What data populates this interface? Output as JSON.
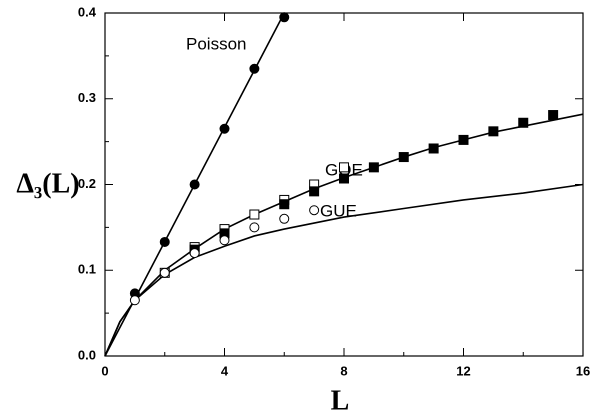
{
  "chart_data": {
    "type": "line",
    "x_label": "L",
    "y_label": "Δ₃(L)",
    "xlim": [
      0,
      16
    ],
    "ylim": [
      0,
      0.4
    ],
    "xticks": [
      0,
      4,
      8,
      12,
      16
    ],
    "yticks": [
      {
        "value": 0,
        "label": "0.0"
      },
      0.1,
      0.2,
      0.3,
      0.4
    ],
    "xminorticks": [
      2,
      6,
      10,
      14
    ],
    "yminorticks": [
      0.05,
      0.15,
      0.25,
      0.35
    ],
    "color": "#000000",
    "series": [
      {
        "name": "Poisson",
        "style": "line",
        "x": [
          0,
          6
        ],
        "values": [
          0,
          0.4
        ]
      },
      {
        "name": "GOE",
        "style": "line",
        "x": [
          0,
          0.5,
          1,
          2,
          3,
          4,
          5,
          6,
          7,
          8,
          9,
          10,
          11,
          12,
          13,
          14,
          15,
          16
        ],
        "values": [
          0,
          0.04,
          0.065,
          0.1,
          0.125,
          0.148,
          0.165,
          0.18,
          0.195,
          0.208,
          0.22,
          0.232,
          0.243,
          0.252,
          0.261,
          0.268,
          0.275,
          0.282
        ]
      },
      {
        "name": "GUE",
        "style": "line",
        "x": [
          0,
          0.5,
          1,
          2,
          3,
          4,
          5,
          6,
          7,
          8,
          10,
          12,
          14,
          16
        ],
        "values": [
          0,
          0.04,
          0.065,
          0.095,
          0.115,
          0.128,
          0.14,
          0.148,
          0.155,
          0.162,
          0.172,
          0.182,
          0.19,
          0.2
        ]
      },
      {
        "style": "marker",
        "marker": "circle",
        "filled": true,
        "x": [
          1,
          2,
          3,
          4,
          5,
          6
        ],
        "values": [
          0.073,
          0.133,
          0.2,
          0.265,
          0.335,
          0.395
        ]
      },
      {
        "style": "marker",
        "marker": "square",
        "filled": false,
        "x": [
          2,
          3,
          4,
          5,
          6,
          7,
          8
        ],
        "values": [
          0.097,
          0.127,
          0.148,
          0.165,
          0.182,
          0.2,
          0.22
        ]
      },
      {
        "style": "marker",
        "marker": "square",
        "filled": true,
        "x": [
          3,
          4,
          6,
          7,
          8,
          9,
          10,
          11,
          12,
          13,
          14,
          15
        ],
        "values": [
          0.124,
          0.143,
          0.177,
          0.192,
          0.207,
          0.22,
          0.232,
          0.242,
          0.252,
          0.262,
          0.272,
          0.281
        ]
      },
      {
        "style": "marker",
        "marker": "circle",
        "filled": false,
        "x": [
          1,
          2,
          3,
          4,
          5,
          6,
          7
        ],
        "values": [
          0.065,
          0.097,
          0.12,
          0.135,
          0.15,
          0.16,
          0.17
        ]
      }
    ]
  }
}
